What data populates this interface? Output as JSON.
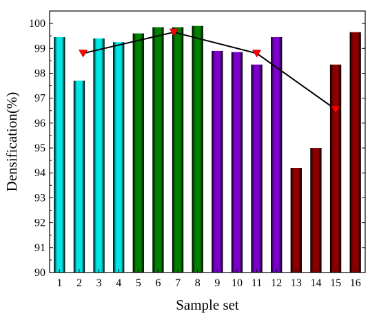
{
  "chart_data": {
    "type": "bar",
    "xlabel": "Sample set",
    "ylabel": "Densification(%)",
    "ylim": [
      90,
      100.5
    ],
    "yticks": [
      90,
      91,
      92,
      93,
      94,
      95,
      96,
      97,
      98,
      99,
      100
    ],
    "categories": [
      "1",
      "2",
      "3",
      "4",
      "5",
      "6",
      "7",
      "8",
      "9",
      "10",
      "11",
      "12",
      "13",
      "14",
      "15",
      "16"
    ],
    "values": [
      99.45,
      97.7,
      99.4,
      99.25,
      99.6,
      99.85,
      99.85,
      99.9,
      98.9,
      98.85,
      98.35,
      99.45,
      94.2,
      95.0,
      98.35,
      99.65
    ],
    "bar_groups": [
      {
        "categories": [
          "1",
          "2",
          "3",
          "4"
        ],
        "color": "#00e5e5"
      },
      {
        "categories": [
          "5",
          "6",
          "7",
          "8"
        ],
        "color": "#008000"
      },
      {
        "categories": [
          "9",
          "10",
          "11",
          "12"
        ],
        "color": "#7b00cc"
      },
      {
        "categories": [
          "13",
          "14",
          "15",
          "16"
        ],
        "color": "#8b0000"
      }
    ],
    "line_series": {
      "marker": "down-triangle",
      "marker_color": "#ff0000",
      "line_color": "#000000",
      "points": [
        {
          "x": 2.2,
          "y": 98.8
        },
        {
          "x": 6.8,
          "y": 99.65
        },
        {
          "x": 11.0,
          "y": 98.8
        },
        {
          "x": 15.0,
          "y": 96.55
        }
      ]
    },
    "grid": false,
    "legend": "none"
  }
}
